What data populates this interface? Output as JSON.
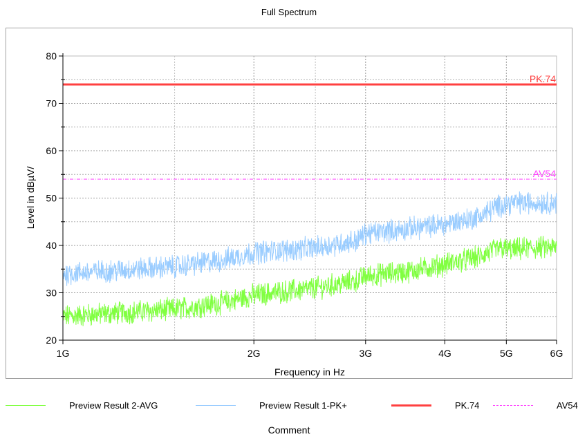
{
  "chart_data": {
    "type": "line",
    "title": "Full Spectrum",
    "xlabel": "Frequency in Hz",
    "ylabel": "Level in dBµV/",
    "x_scale": "log",
    "xlim": [
      1000000000,
      6000000000
    ],
    "ylim": [
      20,
      80
    ],
    "x_ticks": [
      {
        "value": 1000000000,
        "label": "1G"
      },
      {
        "value": 2000000000,
        "label": "2G"
      },
      {
        "value": 3000000000,
        "label": "3G"
      },
      {
        "value": 4000000000,
        "label": "4G"
      },
      {
        "value": 5000000000,
        "label": "5G"
      },
      {
        "value": 6000000000,
        "label": "6G"
      }
    ],
    "y_ticks": [
      20,
      30,
      40,
      50,
      60,
      70,
      80
    ],
    "grid": true,
    "legend_position": "bottom",
    "series": [
      {
        "name": "Preview Result 2-AVG",
        "color": "#80ff40",
        "style": "noisy-band",
        "x": [
          1000000000,
          1500000000,
          1800000000,
          2000000000,
          2500000000,
          2900000000,
          3000000000,
          3500000000,
          4000000000,
          4500000000,
          4900000000,
          5100000000,
          5500000000,
          6000000000
        ],
        "y": [
          25,
          26.5,
          28,
          29.5,
          31,
          32.5,
          33.5,
          34.5,
          36,
          37.5,
          39.5,
          39,
          39.5,
          39.5
        ]
      },
      {
        "name": "Preview Result 1-PK+",
        "color": "#99ccff",
        "style": "noisy-band",
        "x": [
          1000000000,
          1500000000,
          1800000000,
          2000000000,
          2500000000,
          2900000000,
          3000000000,
          3500000000,
          4000000000,
          4500000000,
          4900000000,
          5100000000,
          5500000000,
          6000000000
        ],
        "y": [
          34,
          35.5,
          37,
          38.5,
          39.5,
          41,
          42.5,
          43.5,
          44.5,
          46,
          48.5,
          49,
          49,
          49
        ]
      },
      {
        "name": "PK.74",
        "color": "#ff4040",
        "style": "limit-solid",
        "x": [
          1000000000,
          6000000000
        ],
        "y": [
          74,
          74
        ]
      },
      {
        "name": "AV54",
        "color": "#ff40ff",
        "style": "limit-dash",
        "x": [
          1000000000,
          6000000000
        ],
        "y": [
          54,
          54
        ]
      }
    ],
    "annotations": [
      {
        "text": "PK.74",
        "color": "#ff4040"
      },
      {
        "text": "AV54",
        "color": "#ff40ff"
      }
    ],
    "comment_label": "Comment"
  }
}
